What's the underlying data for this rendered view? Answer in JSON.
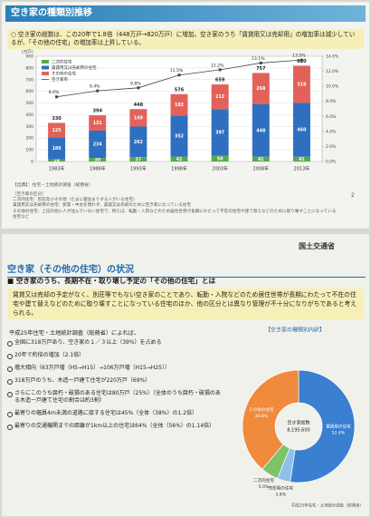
{
  "chart_data": [
    {
      "type": "bar",
      "y_label": "(万戸)",
      "categories": [
        "1983年",
        "1988年",
        "1993年",
        "1998年",
        "2003年",
        "2008年",
        "2013年"
      ],
      "series": [
        {
          "name": "二次的住宅",
          "color": "#5aa84a",
          "values": [
            19,
            30,
            37,
            42,
            50,
            41,
            41
          ]
        },
        {
          "name": "賃貸用又は売却用の住宅",
          "color": "#2f6fc0",
          "values": [
            186,
            234,
            262,
            352,
            397,
            448,
            460
          ]
        },
        {
          "name": "その他の住宅",
          "color": "#e2625a",
          "values": [
            125,
            131,
            149,
            182,
            212,
            268,
            318
          ]
        },
        {
          "name": "空き家率",
          "color": "#444444",
          "axis": "y2",
          "values": [
            8.6,
            9.4,
            9.8,
            11.5,
            12.2,
            13.1,
            13.5
          ],
          "value_labels": [
            "8.6%",
            "9.4%",
            "9.8%",
            "11.5%",
            "12.2%",
            "13.1%",
            "13.5%"
          ]
        }
      ],
      "totals": [
        330,
        394,
        448,
        576,
        659,
        757,
        820
      ],
      "ylim": [
        0,
        900
      ],
      "yticks": [
        0,
        100,
        200,
        300,
        400,
        500,
        600,
        700,
        800,
        900
      ],
      "y2lim": [
        0,
        14
      ],
      "y2ticks": [
        {
          "value": 0,
          "label": "0.0%"
        },
        {
          "value": 2,
          "label": "2.0%"
        },
        {
          "value": 4,
          "label": "4.0%"
        },
        {
          "value": 6,
          "label": "6.0%"
        },
        {
          "value": 8,
          "label": "8.0%"
        },
        {
          "value": 10,
          "label": "10.0%"
        },
        {
          "value": 12,
          "label": "12.0%"
        },
        {
          "value": 14,
          "label": "14.0%"
        }
      ],
      "grid": true,
      "legend": "top-left"
    },
    {
      "type": "pie",
      "title": "【空き家の種類別内訳】",
      "categories": [
        "賃貸用の住宅",
        "売却用の住宅",
        "二次的住宅",
        "その他の住宅"
      ],
      "values": [
        52.4,
        3.8,
        5.0,
        38.8
      ],
      "value_labels": [
        "52.4%",
        "3.8%",
        "5.0%",
        "38.8%"
      ],
      "colors": [
        "#3a7fd0",
        "#8fc0ea",
        "#7cc36a",
        "#f08a3c"
      ],
      "center_title": "空き家総数",
      "center_value": "8,195,600",
      "source": "平成25年住宅・土地統計調査（総務省）"
    }
  ],
  "document": {
    "header": {
      "title": "空き家の種類別推移"
    },
    "intro": "○ 空き家の総数は、この20年で1.8倍（448万戸→820万戸）に増加。空き家のうち「賃貸用又は売却用」の増加率は減少しているが、「その他の住宅」の増加率は上昇している。",
    "source": "【出典】：住宅・土地統計調査（総務省）",
    "notes": [
      "［空き家の区分］",
      "二次的住宅：別荘及びその他（たまに寝泊まりする人がいる住宅）",
      "賃貸用又は売却用の住宅：新築・中古を問わず、賃貸又は売却のために空き家になっている住宅",
      "その他の住宅：上記の他に人が住んでいない住宅で、例えば、転勤・入院などのため居住世帯が長期にわたって不在の住宅や建て替えなどのために取り壊すことになっている住宅など"
    ],
    "page": "2",
    "ministry": "国土交通省",
    "section_title": "空き家（その他の住宅）の状況",
    "subheading": "■ 空き家のうち、長期不在・取り壊し予定の「その他の住宅」とは",
    "definition": "賃貸又は売却の予定がなく、別荘等でもない空き家のことであり、転勤・入院などのため居住世帯が長期にわたって不在の住宅や建て替えなどのために取り壊すことになっている住宅のほか、他の区分とは異なり管理が不十分になりがちであると考えられる。",
    "survey": "平成25年住宅・土地統計調査（総務省）によれば、",
    "bullets": [
      "全国に318万戸あり、空き家の１／３以上（39%）を占める",
      "20年で約倍の増加（2.1倍）",
      "増大傾向（63万戸増（H5→H15）→106万戸増（H15→H25））",
      "318万戸のうち、木造一戸建て住宅が220万戸（69%）",
      "さらにこのうち腐朽・破損のある住宅は80万戸（25%）（全体のうち腐朽・破損のある木造一戸建て住宅の割合は約3割）",
      "最寄りの幅員4ｍ未満の道路に接する住宅は45%（全体（38%）の1.2倍）",
      "最寄りの交通機関までの距離が1km以上の住宅は64%（全体（56%）の1.14倍）"
    ]
  }
}
